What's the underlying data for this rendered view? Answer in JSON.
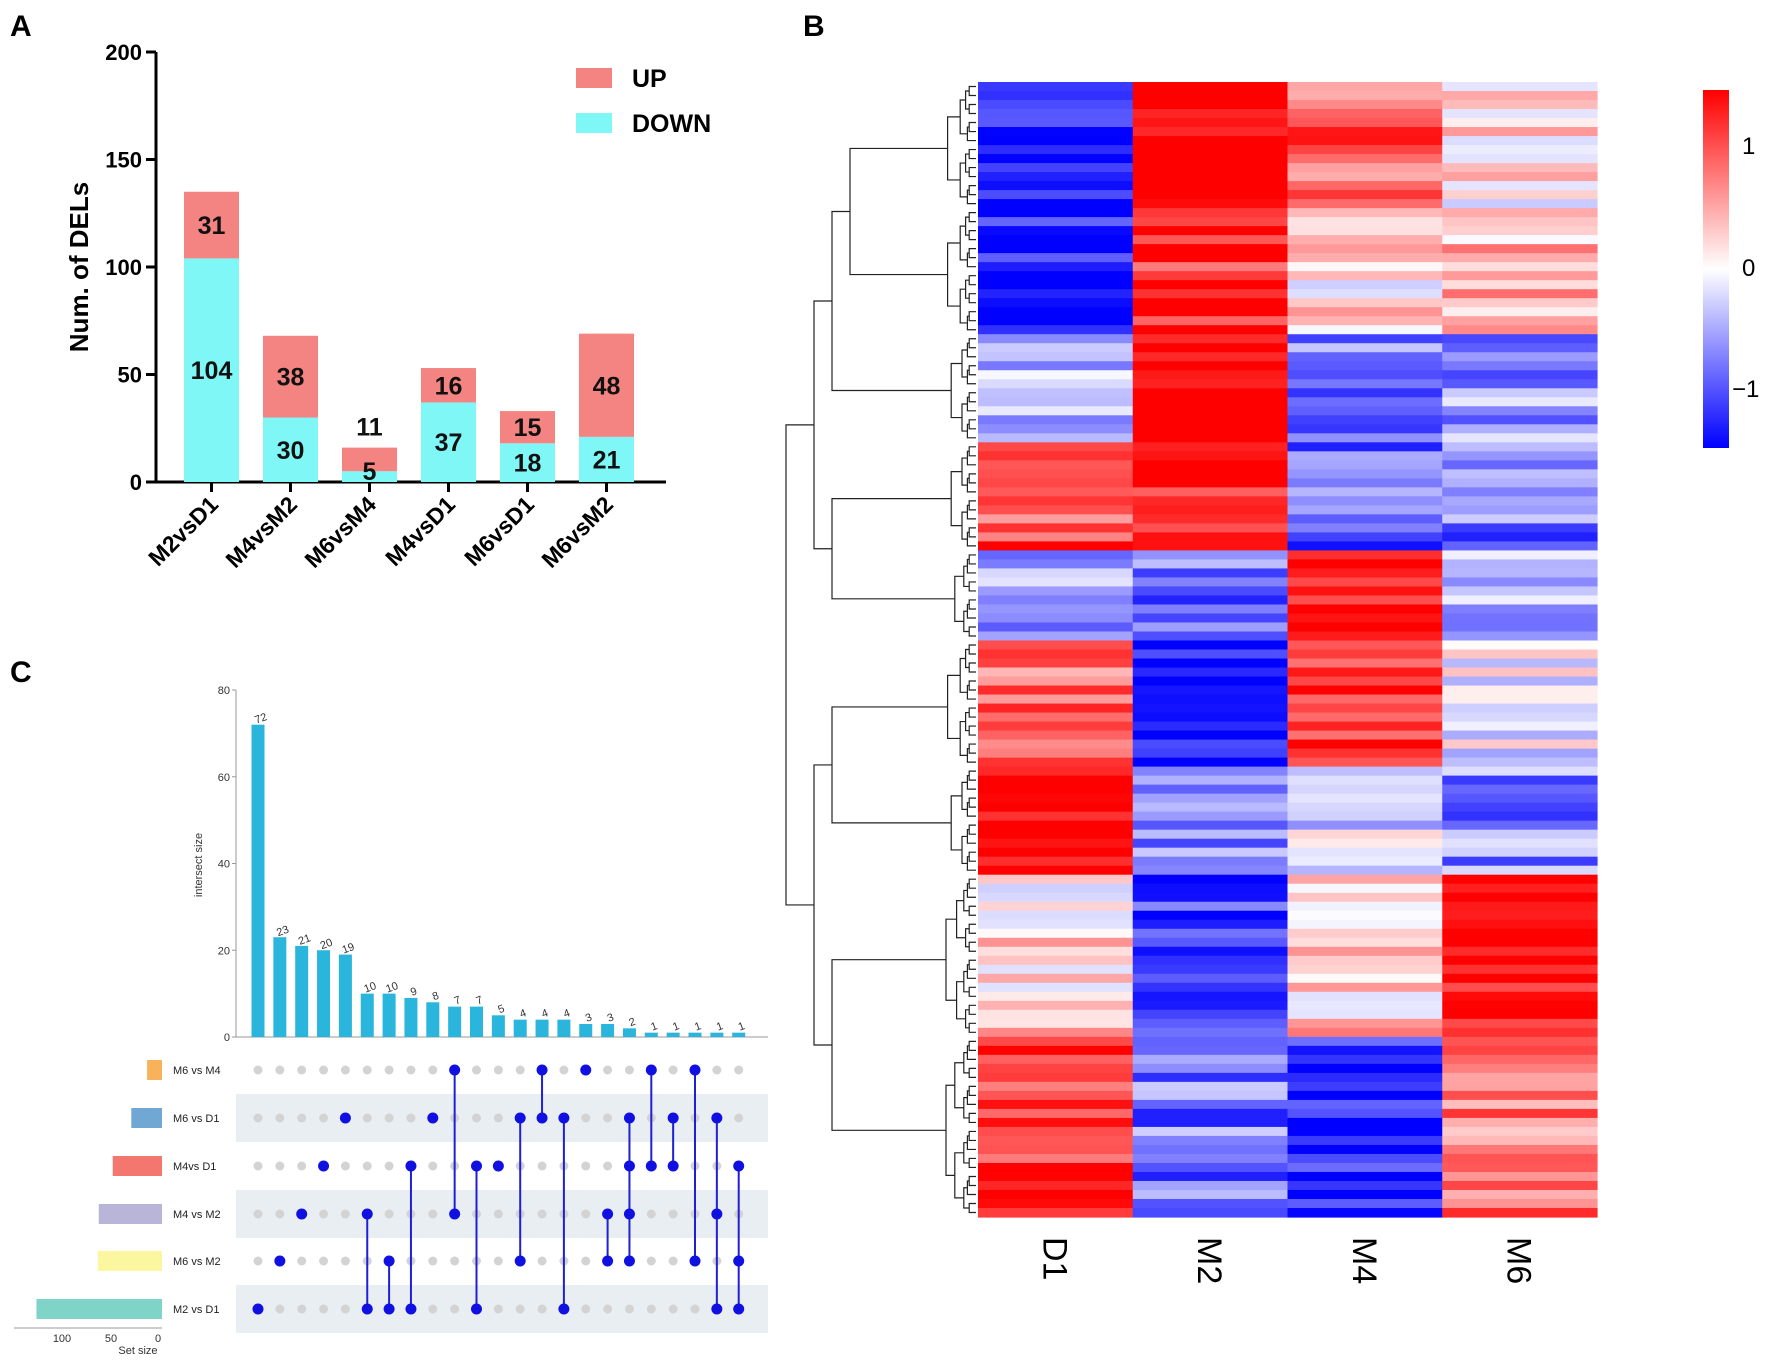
{
  "panels": {
    "a": "A",
    "b": "B",
    "c": "C"
  },
  "chart_data": [
    {
      "type": "bar",
      "stacked": true,
      "title": "",
      "xlabel": "",
      "ylabel": "Num. of DELs",
      "ylim": [
        0,
        200
      ],
      "yticks": [
        0,
        50,
        100,
        150,
        200
      ],
      "categories": [
        "M2vsD1",
        "M4vsM2",
        "M6vsM4",
        "M4vsD1",
        "M6vsD1",
        "M6vsM2"
      ],
      "series": [
        {
          "name": "DOWN",
          "color": "#7ff7f7",
          "values": [
            104,
            30,
            5,
            37,
            18,
            21
          ]
        },
        {
          "name": "UP",
          "color": "#f38482",
          "values": [
            31,
            38,
            11,
            16,
            15,
            48
          ]
        }
      ],
      "legend_position": "top-right"
    },
    {
      "type": "heatmap",
      "columns": [
        "D1",
        "M2",
        "M4",
        "M6"
      ],
      "colorbar": {
        "ticks": [
          "1",
          "0",
          "−1"
        ],
        "low": "#0000ff",
        "mid": "#ffffff",
        "high": "#ff0000"
      },
      "row_dendrogram": true,
      "row_blocks": [
        {
          "rows": 14,
          "values": [
            -1.0,
            1.5,
            0.8,
            0.1
          ]
        },
        {
          "rows": 14,
          "values": [
            -1.2,
            1.1,
            0.2,
            0.3
          ]
        },
        {
          "rows": 12,
          "values": [
            -0.3,
            1.5,
            -0.6,
            -0.5
          ]
        },
        {
          "rows": 12,
          "values": [
            0.9,
            1.2,
            -0.8,
            -0.7
          ]
        },
        {
          "rows": 10,
          "values": [
            -0.5,
            -0.7,
            1.3,
            -0.3
          ]
        },
        {
          "rows": 14,
          "values": [
            0.7,
            -1.3,
            1.1,
            -0.1
          ]
        },
        {
          "rows": 12,
          "values": [
            1.5,
            -0.5,
            -0.2,
            -0.6
          ]
        },
        {
          "rows": 18,
          "values": [
            0.2,
            -1.0,
            0.3,
            1.3
          ]
        },
        {
          "rows": 20,
          "values": [
            1.1,
            -0.7,
            -1.1,
            0.7
          ]
        }
      ]
    },
    {
      "type": "bar",
      "subtype": "upset",
      "ylabel": "intersect size",
      "ylim": [
        0,
        80
      ],
      "yticks": [
        0,
        20,
        40,
        60,
        80
      ],
      "values": [
        72,
        23,
        21,
        20,
        19,
        10,
        10,
        9,
        8,
        7,
        7,
        5,
        4,
        4,
        4,
        3,
        3,
        2,
        1,
        1,
        1,
        1,
        1
      ],
      "bar_color": "#29b5dc",
      "sets": [
        {
          "name": "M6 vs M4",
          "size": 16,
          "color": "#f7b25a"
        },
        {
          "name": "M6 vs D1",
          "size": 33,
          "color": "#70a7d3"
        },
        {
          "name": "M4vs D1",
          "size": 53,
          "color": "#f3776e"
        },
        {
          "name": "M4 vs M2",
          "size": 68,
          "color": "#b8b5d8"
        },
        {
          "name": "M6 vs M2",
          "size": 69,
          "color": "#fbf7a0"
        },
        {
          "name": "M2 vs D1",
          "size": 135,
          "color": "#7fd3c7"
        }
      ],
      "set_axis_ticks": [
        "100",
        "50",
        "0"
      ],
      "set_axis_label": "Set size",
      "memberships": [
        [
          5
        ],
        [
          4
        ],
        [
          3
        ],
        [
          2
        ],
        [
          1
        ],
        [
          3,
          5
        ],
        [
          4,
          5
        ],
        [
          2,
          5
        ],
        [
          1
        ],
        [
          0,
          3
        ],
        [
          2,
          5
        ],
        [
          2
        ],
        [
          1,
          4
        ],
        [
          0,
          1
        ],
        [
          1,
          5
        ],
        [
          0
        ],
        [
          3,
          4
        ],
        [
          1,
          2,
          3,
          4
        ],
        [
          0,
          2
        ],
        [
          1,
          2
        ],
        [
          0,
          4
        ],
        [
          1,
          3,
          5
        ],
        [
          2,
          4,
          5
        ]
      ]
    }
  ]
}
